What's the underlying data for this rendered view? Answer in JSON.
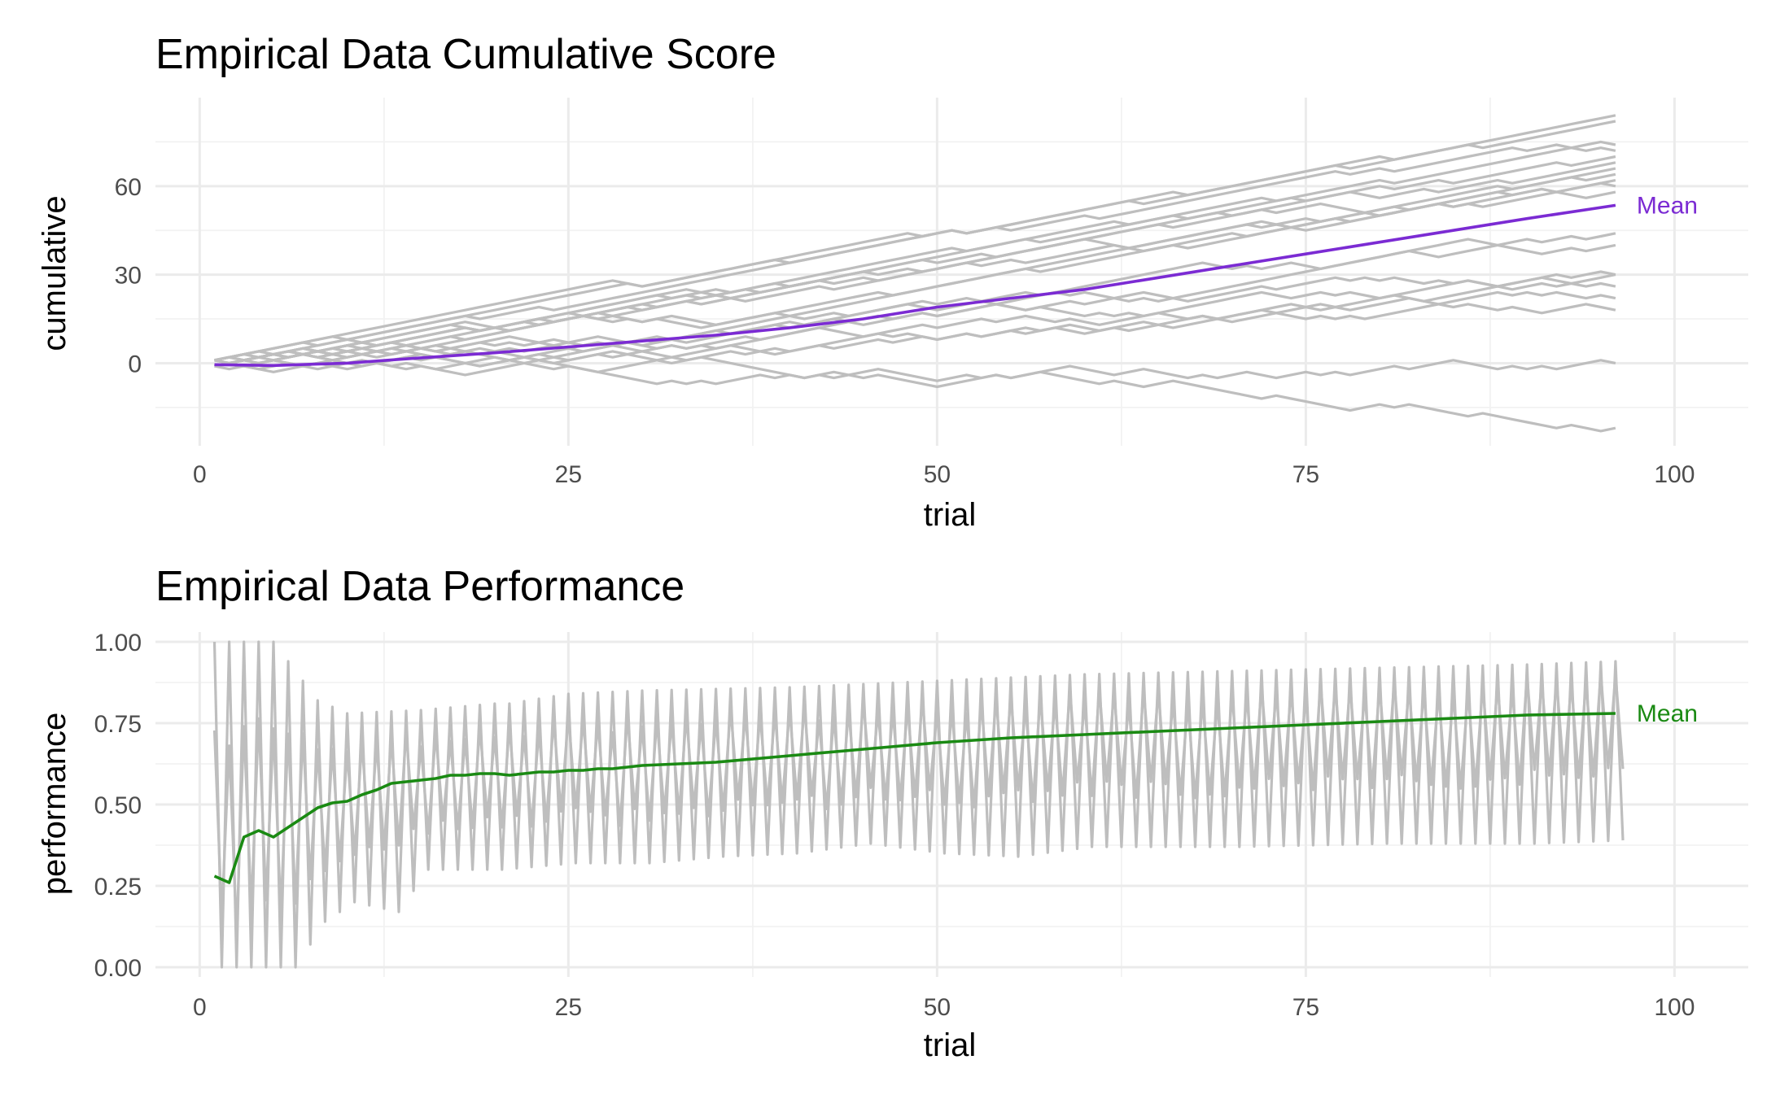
{
  "colors": {
    "individual": "#bebebe",
    "mean_cumulative": "#7b2bd3",
    "mean_performance": "#1a8a13",
    "grid": "#ebebeb",
    "tick_text": "#4d4d4d"
  },
  "chart_data": [
    {
      "type": "line",
      "title": "Empirical Data Cumulative Score",
      "xlabel": "trial",
      "ylabel": "cumulative",
      "xlim": [
        -3,
        105
      ],
      "ylim": [
        -28,
        90
      ],
      "xticks": [
        0,
        25,
        50,
        75,
        100
      ],
      "xtick_labels": [
        "0",
        "25",
        "50",
        "75",
        "100"
      ],
      "yticks": [
        0,
        30,
        60
      ],
      "ytick_labels": [
        "0",
        "30",
        "60"
      ],
      "grid": true,
      "mean_label": "Mean",
      "individual_series_count": 20,
      "individual_final_values": [
        84,
        82,
        74,
        72,
        70,
        68,
        66,
        64,
        62,
        60,
        57,
        44,
        40,
        30,
        30,
        26,
        22,
        18,
        0,
        -22
      ],
      "mean_series": {
        "name": "Mean",
        "x": [
          1,
          5,
          10,
          15,
          20,
          25,
          30,
          35,
          40,
          45,
          50,
          55,
          60,
          65,
          70,
          75,
          80,
          85,
          90,
          96
        ],
        "y": [
          -0.5,
          -0.8,
          0.0,
          1.8,
          3.5,
          5.5,
          7.5,
          9.5,
          12.0,
          15.0,
          19.0,
          22.0,
          25.0,
          29.0,
          33.0,
          37.0,
          41.0,
          45.0,
          49.0,
          53.5
        ]
      }
    },
    {
      "type": "line",
      "title": "Empirical Data Performance",
      "xlabel": "trial",
      "ylabel": "performance",
      "xlim": [
        -3,
        105
      ],
      "ylim": [
        -0.03,
        1.03
      ],
      "xticks": [
        0,
        25,
        50,
        75,
        100
      ],
      "xtick_labels": [
        "0",
        "25",
        "50",
        "75",
        "100"
      ],
      "yticks": [
        0,
        0.25,
        0.5,
        0.75,
        1.0
      ],
      "ytick_labels": [
        "0.00",
        "0.25",
        "0.50",
        "0.75",
        "1.00"
      ],
      "grid": true,
      "mean_label": "Mean",
      "individual_upper_envelope": {
        "x": [
          1,
          2,
          3,
          4,
          5,
          8,
          10,
          15,
          20,
          21,
          25,
          30,
          40,
          50,
          60,
          70,
          80,
          90,
          96
        ],
        "y": [
          1.0,
          1.0,
          1.0,
          1.0,
          1.0,
          0.82,
          0.78,
          0.79,
          0.81,
          0.81,
          0.84,
          0.85,
          0.86,
          0.88,
          0.9,
          0.91,
          0.92,
          0.93,
          0.94
        ]
      },
      "individual_lower_envelope": {
        "x": [
          1,
          2,
          3,
          4,
          5,
          6,
          8,
          10,
          13,
          15,
          20,
          25,
          30,
          35,
          40,
          45,
          50,
          55,
          60,
          70,
          80,
          90,
          96
        ],
        "y": [
          0.0,
          0.0,
          0.0,
          0.0,
          0.0,
          0.0,
          0.14,
          0.2,
          0.17,
          0.3,
          0.3,
          0.32,
          0.32,
          0.34,
          0.35,
          0.38,
          0.35,
          0.34,
          0.37,
          0.37,
          0.38,
          0.38,
          0.39
        ]
      },
      "mean_series": {
        "name": "Mean",
        "x": [
          1,
          2,
          3,
          4,
          5,
          6,
          7,
          8,
          9,
          10,
          11,
          12,
          13,
          14,
          15,
          16,
          17,
          18,
          19,
          20,
          21,
          22,
          23,
          24,
          25,
          26,
          27,
          28,
          29,
          30,
          35,
          40,
          45,
          50,
          55,
          60,
          65,
          70,
          75,
          80,
          85,
          90,
          96
        ],
        "y": [
          0.28,
          0.26,
          0.4,
          0.42,
          0.4,
          0.43,
          0.46,
          0.49,
          0.505,
          0.51,
          0.53,
          0.545,
          0.565,
          0.57,
          0.575,
          0.58,
          0.59,
          0.59,
          0.595,
          0.595,
          0.59,
          0.595,
          0.6,
          0.6,
          0.605,
          0.605,
          0.61,
          0.61,
          0.615,
          0.62,
          0.63,
          0.65,
          0.67,
          0.69,
          0.705,
          0.715,
          0.725,
          0.735,
          0.745,
          0.755,
          0.765,
          0.775,
          0.78
        ]
      }
    }
  ]
}
